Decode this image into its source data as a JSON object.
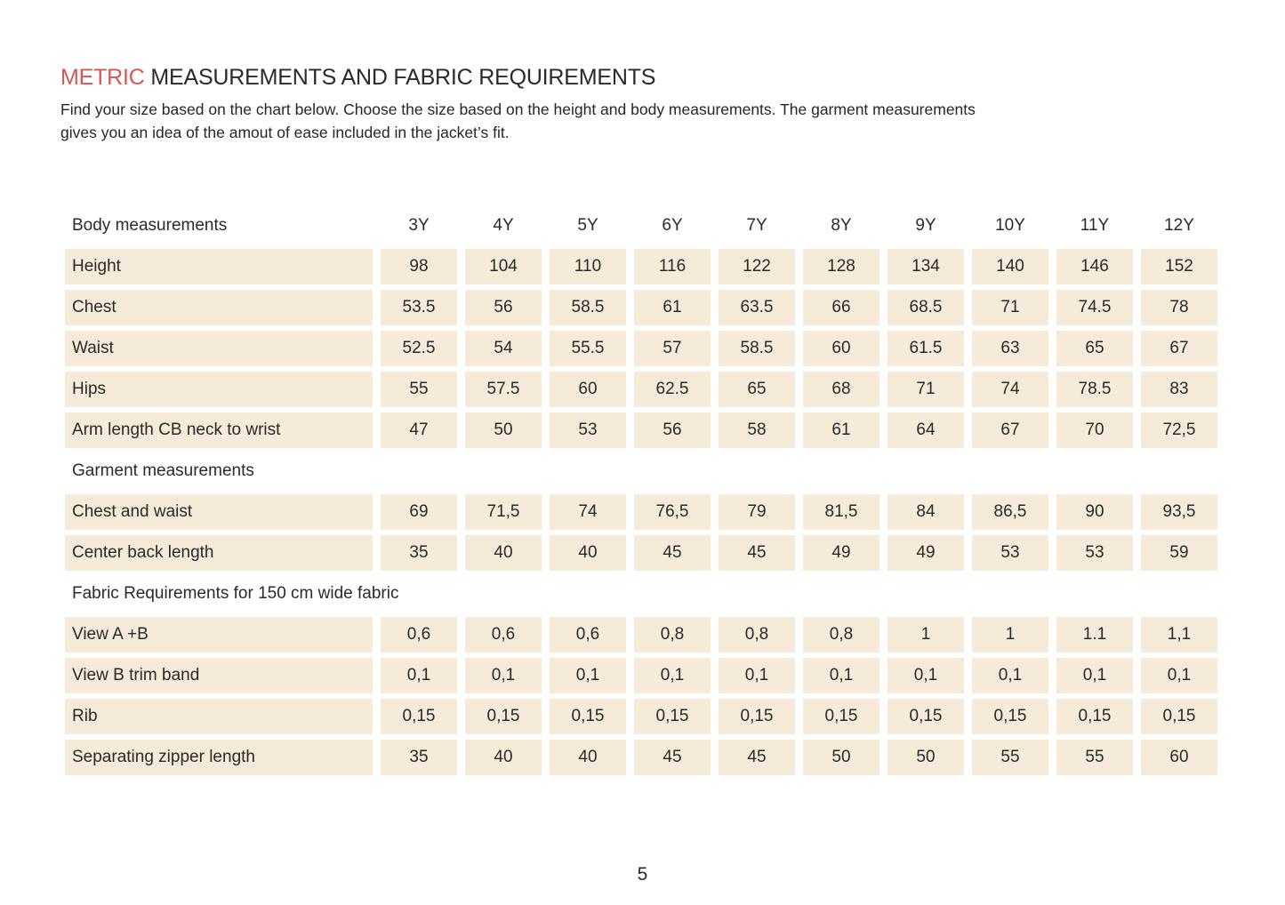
{
  "page": {
    "title_accent": "METRIC",
    "title_rest": " MEASUREMENTS AND FABRIC REQUIREMENTS",
    "intro_line1": "Find your size based on the chart below. Choose the size based on the height and body measurements. The garment measurements",
    "intro_line2": "gives you an idea of the amout of ease included in the jacket’s fit.",
    "page_number": "5"
  },
  "colors": {
    "accent": "#d15a57",
    "cell_background": "#f6ead9",
    "text": "#2a2a2a"
  },
  "table": {
    "header_label": "Body measurements",
    "sizes": [
      "3Y",
      "4Y",
      "5Y",
      "6Y",
      "7Y",
      "8Y",
      "9Y",
      "10Y",
      "11Y",
      "12Y"
    ],
    "sections": [
      {
        "heading": null,
        "rows": [
          {
            "label": "Height",
            "values": [
              "98",
              "104",
              "110",
              "116",
              "122",
              "128",
              "134",
              "140",
              "146",
              "152"
            ]
          },
          {
            "label": "Chest",
            "values": [
              "53.5",
              "56",
              "58.5",
              "61",
              "63.5",
              "66",
              "68.5",
              "71",
              "74.5",
              "78"
            ]
          },
          {
            "label": "Waist",
            "values": [
              "52.5",
              "54",
              "55.5",
              "57",
              "58.5",
              "60",
              "61.5",
              "63",
              "65",
              "67"
            ]
          },
          {
            "label": "Hips",
            "values": [
              "55",
              "57.5",
              "60",
              "62.5",
              "65",
              "68",
              "71",
              "74",
              "78.5",
              "83"
            ]
          },
          {
            "label": "Arm length CB neck to wrist",
            "values": [
              "47",
              "50",
              "53",
              "56",
              "58",
              "61",
              "64",
              "67",
              "70",
              "72,5"
            ]
          }
        ]
      },
      {
        "heading": "Garment measurements",
        "rows": [
          {
            "label": "Chest and waist",
            "values": [
              "69",
              "71,5",
              "74",
              "76,5",
              "79",
              "81,5",
              "84",
              "86,5",
              "90",
              "93,5"
            ]
          },
          {
            "label": "Center back length",
            "values": [
              "35",
              "40",
              "40",
              "45",
              "45",
              "49",
              "49",
              "53",
              "53",
              "59"
            ]
          }
        ]
      },
      {
        "heading": "Fabric Requirements for 150 cm wide fabric",
        "rows": [
          {
            "label": "View A +B",
            "values": [
              "0,6",
              "0,6",
              "0,6",
              "0,8",
              "0,8",
              "0,8",
              "1",
              "1",
              "1.1",
              "1,1"
            ]
          },
          {
            "label": "View B trim band",
            "values": [
              "0,1",
              "0,1",
              "0,1",
              "0,1",
              "0,1",
              "0,1",
              "0,1",
              "0,1",
              "0,1",
              "0,1"
            ]
          },
          {
            "label": "Rib",
            "values": [
              "0,15",
              "0,15",
              "0,15",
              "0,15",
              "0,15",
              "0,15",
              "0,15",
              "0,15",
              "0,15",
              "0,15"
            ]
          },
          {
            "label": "Separating zipper length",
            "values": [
              "35",
              "40",
              "40",
              "45",
              "45",
              "50",
              "50",
              "55",
              "55",
              "60"
            ]
          }
        ]
      }
    ]
  }
}
